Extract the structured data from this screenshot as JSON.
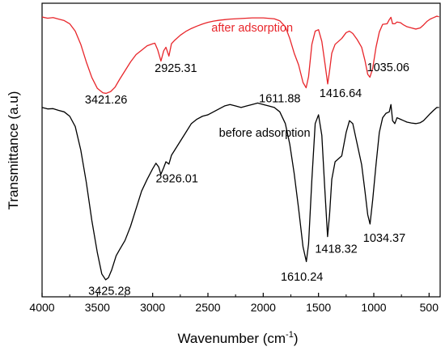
{
  "chart_data": {
    "type": "line",
    "xlabel": "Wavenumber (cm",
    "xlabel_sup": "-1",
    "xlabel_close": ")",
    "ylabel": "Transmittance (a.u)",
    "xlim": [
      4000,
      400
    ],
    "x_reversed": true,
    "ylim": [
      0,
      1
    ],
    "y_ticks_shown": false,
    "grid": false,
    "x_ticks": [
      4000,
      3500,
      3000,
      2500,
      2000,
      1500,
      1000,
      500
    ],
    "x_tick_labels": [
      "4000",
      "3500",
      "3000",
      "2500",
      "2000",
      "1500",
      "1000",
      "500"
    ],
    "series": [
      {
        "name": "after adsorption",
        "color": "#e8262b",
        "points": [
          [
            4000,
            0.953
          ],
          [
            3950,
            0.949
          ],
          [
            3900,
            0.951
          ],
          [
            3850,
            0.946
          ],
          [
            3800,
            0.941
          ],
          [
            3750,
            0.93
          ],
          [
            3700,
            0.905
          ],
          [
            3650,
            0.86
          ],
          [
            3600,
            0.8
          ],
          [
            3550,
            0.747
          ],
          [
            3500,
            0.71
          ],
          [
            3450,
            0.695
          ],
          [
            3421,
            0.693
          ],
          [
            3380,
            0.699
          ],
          [
            3340,
            0.714
          ],
          [
            3300,
            0.74
          ],
          [
            3250,
            0.77
          ],
          [
            3200,
            0.8
          ],
          [
            3150,
            0.825
          ],
          [
            3100,
            0.84
          ],
          [
            3050,
            0.855
          ],
          [
            3000,
            0.862
          ],
          [
            2980,
            0.864
          ],
          [
            2955,
            0.842
          ],
          [
            2925,
            0.803
          ],
          [
            2900,
            0.838
          ],
          [
            2880,
            0.85
          ],
          [
            2853,
            0.82
          ],
          [
            2830,
            0.862
          ],
          [
            2800,
            0.874
          ],
          [
            2750,
            0.891
          ],
          [
            2700,
            0.904
          ],
          [
            2650,
            0.914
          ],
          [
            2600,
            0.922
          ],
          [
            2550,
            0.929
          ],
          [
            2500,
            0.935
          ],
          [
            2450,
            0.939
          ],
          [
            2400,
            0.942
          ],
          [
            2350,
            0.944
          ],
          [
            2300,
            0.946
          ],
          [
            2200,
            0.948
          ],
          [
            2100,
            0.95
          ],
          [
            2000,
            0.95
          ],
          [
            1900,
            0.947
          ],
          [
            1850,
            0.94
          ],
          [
            1800,
            0.92
          ],
          [
            1760,
            0.88
          ],
          [
            1720,
            0.83
          ],
          [
            1680,
            0.79
          ],
          [
            1640,
            0.73
          ],
          [
            1612,
            0.712
          ],
          [
            1590,
            0.75
          ],
          [
            1560,
            0.86
          ],
          [
            1530,
            0.905
          ],
          [
            1500,
            0.91
          ],
          [
            1470,
            0.87
          ],
          [
            1440,
            0.79
          ],
          [
            1417,
            0.725
          ],
          [
            1400,
            0.77
          ],
          [
            1380,
            0.83
          ],
          [
            1350,
            0.86
          ],
          [
            1320,
            0.87
          ],
          [
            1290,
            0.88
          ],
          [
            1250,
            0.9
          ],
          [
            1220,
            0.905
          ],
          [
            1190,
            0.897
          ],
          [
            1150,
            0.876
          ],
          [
            1110,
            0.85
          ],
          [
            1080,
            0.805
          ],
          [
            1055,
            0.758
          ],
          [
            1035,
            0.748
          ],
          [
            1010,
            0.778
          ],
          [
            980,
            0.85
          ],
          [
            950,
            0.902
          ],
          [
            920,
            0.928
          ],
          [
            880,
            0.93
          ],
          [
            860,
            0.944
          ],
          [
            845,
            0.952
          ],
          [
            830,
            0.93
          ],
          [
            810,
            0.93
          ],
          [
            790,
            0.936
          ],
          [
            760,
            0.934
          ],
          [
            730,
            0.926
          ],
          [
            700,
            0.92
          ],
          [
            660,
            0.916
          ],
          [
            620,
            0.912
          ],
          [
            580,
            0.916
          ],
          [
            550,
            0.926
          ],
          [
            520,
            0.938
          ],
          [
            490,
            0.946
          ],
          [
            460,
            0.951
          ],
          [
            430,
            0.956
          ],
          [
            410,
            0.954
          ]
        ]
      },
      {
        "name": "before adsorption",
        "color": "#000000",
        "points": [
          [
            4000,
            0.645
          ],
          [
            3950,
            0.64
          ],
          [
            3900,
            0.641
          ],
          [
            3850,
            0.635
          ],
          [
            3800,
            0.63
          ],
          [
            3750,
            0.615
          ],
          [
            3700,
            0.58
          ],
          [
            3650,
            0.5
          ],
          [
            3600,
            0.39
          ],
          [
            3550,
            0.26
          ],
          [
            3500,
            0.15
          ],
          [
            3460,
            0.078
          ],
          [
            3425,
            0.058
          ],
          [
            3400,
            0.065
          ],
          [
            3370,
            0.092
          ],
          [
            3330,
            0.14
          ],
          [
            3300,
            0.16
          ],
          [
            3250,
            0.192
          ],
          [
            3200,
            0.24
          ],
          [
            3150,
            0.3
          ],
          [
            3100,
            0.36
          ],
          [
            3050,
            0.4
          ],
          [
            3000,
            0.436
          ],
          [
            2970,
            0.455
          ],
          [
            2945,
            0.442
          ],
          [
            2926,
            0.417
          ],
          [
            2900,
            0.44
          ],
          [
            2880,
            0.46
          ],
          [
            2853,
            0.452
          ],
          [
            2830,
            0.482
          ],
          [
            2800,
            0.5
          ],
          [
            2750,
            0.53
          ],
          [
            2700,
            0.56
          ],
          [
            2650,
            0.59
          ],
          [
            2600,
            0.605
          ],
          [
            2550,
            0.615
          ],
          [
            2500,
            0.62
          ],
          [
            2450,
            0.63
          ],
          [
            2400,
            0.64
          ],
          [
            2350,
            0.65
          ],
          [
            2300,
            0.655
          ],
          [
            2250,
            0.65
          ],
          [
            2200,
            0.645
          ],
          [
            2150,
            0.65
          ],
          [
            2100,
            0.655
          ],
          [
            2050,
            0.66
          ],
          [
            2000,
            0.655
          ],
          [
            1950,
            0.65
          ],
          [
            1900,
            0.645
          ],
          [
            1850,
            0.63
          ],
          [
            1800,
            0.59
          ],
          [
            1760,
            0.52
          ],
          [
            1720,
            0.42
          ],
          [
            1680,
            0.3
          ],
          [
            1640,
            0.17
          ],
          [
            1610,
            0.12
          ],
          [
            1590,
            0.18
          ],
          [
            1560,
            0.4
          ],
          [
            1530,
            0.59
          ],
          [
            1500,
            0.62
          ],
          [
            1470,
            0.55
          ],
          [
            1445,
            0.38
          ],
          [
            1418,
            0.205
          ],
          [
            1400,
            0.28
          ],
          [
            1380,
            0.4
          ],
          [
            1350,
            0.46
          ],
          [
            1320,
            0.47
          ],
          [
            1290,
            0.48
          ],
          [
            1250,
            0.56
          ],
          [
            1220,
            0.6
          ],
          [
            1190,
            0.59
          ],
          [
            1150,
            0.52
          ],
          [
            1110,
            0.45
          ],
          [
            1080,
            0.36
          ],
          [
            1055,
            0.28
          ],
          [
            1034,
            0.248
          ],
          [
            1010,
            0.33
          ],
          [
            980,
            0.45
          ],
          [
            950,
            0.56
          ],
          [
            920,
            0.61
          ],
          [
            890,
            0.625
          ],
          [
            860,
            0.63
          ],
          [
            845,
            0.655
          ],
          [
            830,
            0.6
          ],
          [
            810,
            0.59
          ],
          [
            790,
            0.61
          ],
          [
            760,
            0.605
          ],
          [
            730,
            0.6
          ],
          [
            700,
            0.595
          ],
          [
            660,
            0.592
          ],
          [
            620,
            0.59
          ],
          [
            580,
            0.593
          ],
          [
            550,
            0.6
          ],
          [
            520,
            0.612
          ],
          [
            490,
            0.624
          ],
          [
            460,
            0.635
          ],
          [
            430,
            0.645
          ],
          [
            410,
            0.645
          ]
        ]
      }
    ],
    "annotations": [
      {
        "text": "after adsorption",
        "x": 2100,
        "y": 0.904,
        "color": "#e8262b",
        "anchor": "middle"
      },
      {
        "text": "before adsorption",
        "x": 2400,
        "y": 0.545,
        "color": "#000000",
        "anchor": "start"
      },
      {
        "text": "3421.26",
        "x": 3421,
        "y": 0.658,
        "color": "#000000",
        "anchor": "middle"
      },
      {
        "text": "2925.31",
        "x": 2790,
        "y": 0.766,
        "color": "#000000",
        "anchor": "middle"
      },
      {
        "text": "1611.88",
        "x": 1850,
        "y": 0.662,
        "color": "#000000",
        "anchor": "middle"
      },
      {
        "text": "1416.64",
        "x": 1300,
        "y": 0.68,
        "color": "#000000",
        "anchor": "middle"
      },
      {
        "text": "1035.06",
        "x": 870,
        "y": 0.768,
        "color": "#000000",
        "anchor": "middle"
      },
      {
        "text": "3425.28",
        "x": 3390,
        "y": 0.007,
        "color": "#000000",
        "anchor": "middle"
      },
      {
        "text": "2926.01",
        "x": 2780,
        "y": 0.39,
        "color": "#000000",
        "anchor": "middle"
      },
      {
        "text": "1610.24",
        "x": 1650,
        "y": 0.055,
        "color": "#000000",
        "anchor": "middle"
      },
      {
        "text": "1418.32",
        "x": 1340,
        "y": 0.15,
        "color": "#000000",
        "anchor": "middle"
      },
      {
        "text": "1034.37",
        "x": 905,
        "y": 0.188,
        "color": "#000000",
        "anchor": "middle"
      }
    ]
  }
}
